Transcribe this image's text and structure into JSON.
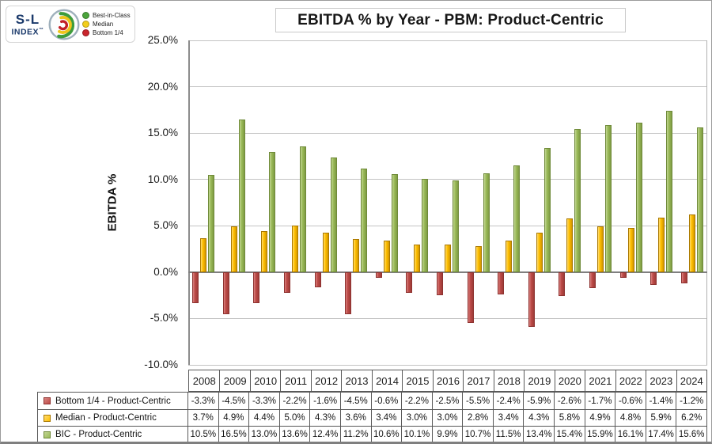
{
  "logo": {
    "line1": "S-L",
    "line2": "INDEX",
    "tm": "™"
  },
  "legend": {
    "items": [
      {
        "label": "Best-in-Class",
        "color": "#4ba43b"
      },
      {
        "label": "Median",
        "color": "#f2ce1b"
      },
      {
        "label": "Bottom 1/4",
        "color": "#c9252c"
      }
    ]
  },
  "title": "EBITDA % by Year - PBM: Product-Centric",
  "y_axis": {
    "label": "EBITDA %",
    "ticks": [
      "25.0%",
      "20.0%",
      "15.0%",
      "10.0%",
      "5.0%",
      "0.0%",
      "-5.0%",
      "-10.0%"
    ],
    "max": 25,
    "min": -10,
    "step": 5
  },
  "chart_data": {
    "type": "bar",
    "title": "EBITDA % by Year - PBM: Product-Centric",
    "xlabel": "",
    "ylabel": "EBITDA %",
    "ylim": [
      -10,
      25
    ],
    "grid": true,
    "legend_position": "top-left",
    "categories": [
      2008,
      2009,
      2010,
      2011,
      2012,
      2013,
      2014,
      2015,
      2016,
      2017,
      2018,
      2019,
      2020,
      2021,
      2022,
      2023,
      2024
    ],
    "series": [
      {
        "name": "Bottom 1/4 - Product-Centric",
        "key": "bottom",
        "color": "#be4b48",
        "values": [
          -3.3,
          -4.5,
          -3.3,
          -2.2,
          -1.6,
          -4.5,
          -0.6,
          -2.2,
          -2.5,
          -5.5,
          -2.4,
          -5.9,
          -2.6,
          -1.7,
          -0.6,
          -1.4,
          -1.2
        ]
      },
      {
        "name": "Median - Product-Centric",
        "key": "median",
        "color": "#ffc000",
        "values": [
          3.7,
          4.9,
          4.4,
          5.0,
          4.3,
          3.6,
          3.4,
          3.0,
          3.0,
          2.8,
          3.4,
          4.3,
          5.8,
          4.9,
          4.8,
          5.9,
          6.2
        ]
      },
      {
        "name": "BIC - Product-Centric",
        "key": "bic",
        "color": "#9bbb59",
        "values": [
          10.5,
          16.5,
          13.0,
          13.6,
          12.4,
          11.2,
          10.6,
          10.1,
          9.9,
          10.7,
          11.5,
          13.4,
          15.4,
          15.9,
          16.1,
          17.4,
          15.6
        ]
      }
    ]
  },
  "table": {
    "rows": [
      {
        "label": "Bottom 1/4 - Product-Centric",
        "key": "bottom",
        "values": [
          "-3.3%",
          "-4.5%",
          "-3.3%",
          "-2.2%",
          "-1.6%",
          "-4.5%",
          "-0.6%",
          "-2.2%",
          "-2.5%",
          "-5.5%",
          "-2.4%",
          "-5.9%",
          "-2.6%",
          "-1.7%",
          "-0.6%",
          "-1.4%",
          "-1.2%"
        ]
      },
      {
        "label": "Median - Product-Centric",
        "key": "median",
        "values": [
          "3.7%",
          "4.9%",
          "4.4%",
          "5.0%",
          "4.3%",
          "3.6%",
          "3.4%",
          "3.0%",
          "3.0%",
          "2.8%",
          "3.4%",
          "4.3%",
          "5.8%",
          "4.9%",
          "4.8%",
          "5.9%",
          "6.2%"
        ]
      },
      {
        "label": "BIC - Product-Centric",
        "key": "bic",
        "values": [
          "10.5%",
          "16.5%",
          "13.0%",
          "13.6%",
          "12.4%",
          "11.2%",
          "10.6%",
          "10.1%",
          "9.9%",
          "10.7%",
          "11.5%",
          "13.4%",
          "15.4%",
          "15.9%",
          "16.1%",
          "17.4%",
          "15.6%"
        ]
      }
    ]
  }
}
